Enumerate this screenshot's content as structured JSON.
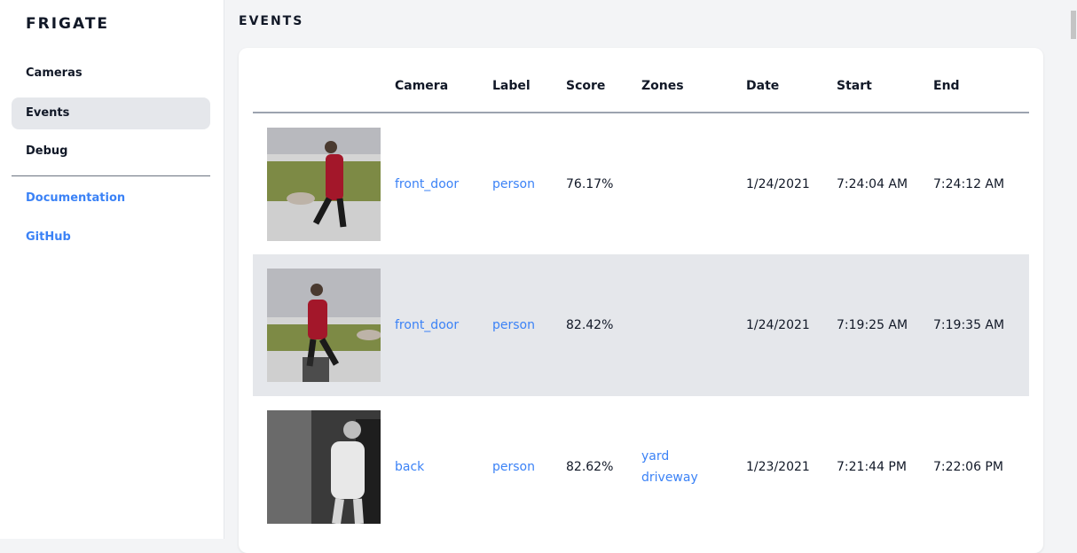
{
  "sidebar": {
    "brand": "FRIGATE",
    "items": [
      {
        "label": "Cameras"
      },
      {
        "label": "Events",
        "active": true
      },
      {
        "label": "Debug"
      }
    ],
    "links": [
      {
        "label": "Documentation"
      },
      {
        "label": "GitHub"
      }
    ]
  },
  "page": {
    "title": "EVENTS"
  },
  "table": {
    "headers": [
      "",
      "Camera",
      "Label",
      "Score",
      "Zones",
      "Date",
      "Start",
      "End"
    ],
    "rows": [
      {
        "camera": "front_door",
        "label": "person",
        "score": "76.17%",
        "zones": [
          "",
          ""
        ],
        "date": "1/24/2021",
        "start": "7:24:04 AM",
        "end": "7:24:12 AM"
      },
      {
        "camera": "front_door",
        "label": "person",
        "score": "82.42%",
        "zones": [
          "",
          ""
        ],
        "date": "1/24/2021",
        "start": "7:19:25 AM",
        "end": "7:19:35 AM"
      },
      {
        "camera": "back",
        "label": "person",
        "score": "82.62%",
        "zones": [
          "yard",
          "driveway"
        ],
        "date": "1/23/2021",
        "start": "7:21:44 PM",
        "end": "7:22:06 PM"
      }
    ]
  },
  "colors": {
    "accent": "#3b82f6",
    "active_bg": "#e5e7eb"
  }
}
